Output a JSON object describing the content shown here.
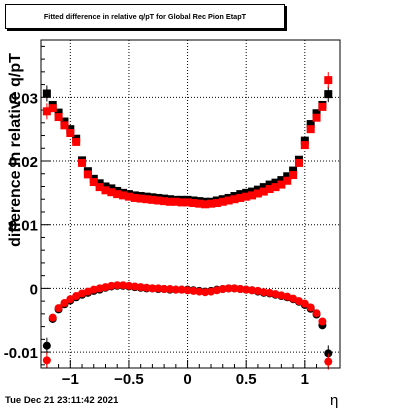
{
  "title": "Fitted difference in relative q/pT for Global Rec Pion EtapT",
  "ylabel": "difference in relative q/pT",
  "xlabel": "η",
  "timestamp": "Tue Dec 21 23:11:42 2021",
  "chart_data": {
    "type": "scatter",
    "xlim": [
      -1.25,
      1.3
    ],
    "ylim": [
      -0.0125,
      0.039
    ],
    "grid": true,
    "x_ticks": [
      -1,
      -0.5,
      0,
      0.5,
      1
    ],
    "x_tick_labels": [
      "−1",
      "−0.5",
      "0",
      "0.5",
      "1"
    ],
    "y_ticks": [
      -0.01,
      0,
      0.01,
      0.02,
      0.03
    ],
    "y_tick_labels": [
      "-0.01",
      "0",
      "0.01",
      "0.02",
      "0.03"
    ],
    "series": [
      {
        "color": "#000000",
        "marker": "square",
        "points": [
          [
            -1.2,
            0.0306
          ],
          [
            -1.15,
            0.0288
          ],
          [
            -1.1,
            0.0276
          ],
          [
            -1.05,
            0.0262
          ],
          [
            -1.0,
            0.025
          ],
          [
            -0.95,
            0.0235
          ],
          [
            -0.9,
            0.0201
          ],
          [
            -0.85,
            0.0184
          ],
          [
            -0.8,
            0.0172
          ],
          [
            -0.75,
            0.0165
          ],
          [
            -0.7,
            0.016
          ],
          [
            -0.65,
            0.0157
          ],
          [
            -0.6,
            0.0153
          ],
          [
            -0.55,
            0.015
          ],
          [
            -0.5,
            0.0148
          ],
          [
            -0.45,
            0.0146
          ],
          [
            -0.4,
            0.0145
          ],
          [
            -0.35,
            0.0144
          ],
          [
            -0.3,
            0.0143
          ],
          [
            -0.25,
            0.0142
          ],
          [
            -0.2,
            0.0141
          ],
          [
            -0.15,
            0.014
          ],
          [
            -0.1,
            0.0139
          ],
          [
            -0.05,
            0.0139
          ],
          [
            0.0,
            0.0139
          ],
          [
            0.05,
            0.0138
          ],
          [
            0.1,
            0.0137
          ],
          [
            0.15,
            0.0136
          ],
          [
            0.2,
            0.0136
          ],
          [
            0.25,
            0.0138
          ],
          [
            0.3,
            0.014
          ],
          [
            0.35,
            0.0142
          ],
          [
            0.4,
            0.0145
          ],
          [
            0.45,
            0.0148
          ],
          [
            0.5,
            0.015
          ],
          [
            0.55,
            0.0152
          ],
          [
            0.6,
            0.0155
          ],
          [
            0.65,
            0.0159
          ],
          [
            0.7,
            0.0163
          ],
          [
            0.75,
            0.0166
          ],
          [
            0.8,
            0.017
          ],
          [
            0.85,
            0.0176
          ],
          [
            0.9,
            0.0185
          ],
          [
            0.95,
            0.0202
          ],
          [
            1.0,
            0.0232
          ],
          [
            1.05,
            0.0258
          ],
          [
            1.1,
            0.0275
          ],
          [
            1.15,
            0.0288
          ],
          [
            1.2,
            0.0305
          ]
        ]
      },
      {
        "color": "#ff0000",
        "marker": "square",
        "points": [
          [
            -1.2,
            0.0278
          ],
          [
            -1.15,
            0.0283
          ],
          [
            -1.1,
            0.0269
          ],
          [
            -1.05,
            0.0256
          ],
          [
            -1.0,
            0.0244
          ],
          [
            -0.95,
            0.023
          ],
          [
            -0.9,
            0.0197
          ],
          [
            -0.85,
            0.0179
          ],
          [
            -0.8,
            0.0167
          ],
          [
            -0.75,
            0.0159
          ],
          [
            -0.7,
            0.0154
          ],
          [
            -0.65,
            0.0151
          ],
          [
            -0.6,
            0.0148
          ],
          [
            -0.55,
            0.0146
          ],
          [
            -0.5,
            0.0144
          ],
          [
            -0.45,
            0.0142
          ],
          [
            -0.4,
            0.0141
          ],
          [
            -0.35,
            0.014
          ],
          [
            -0.3,
            0.0139
          ],
          [
            -0.25,
            0.0138
          ],
          [
            -0.2,
            0.0137
          ],
          [
            -0.15,
            0.0136
          ],
          [
            -0.1,
            0.0136
          ],
          [
            -0.05,
            0.0135
          ],
          [
            0.0,
            0.0135
          ],
          [
            0.05,
            0.0134
          ],
          [
            0.1,
            0.0133
          ],
          [
            0.15,
            0.0132
          ],
          [
            0.2,
            0.0133
          ],
          [
            0.25,
            0.0134
          ],
          [
            0.3,
            0.0136
          ],
          [
            0.35,
            0.0138
          ],
          [
            0.4,
            0.014
          ],
          [
            0.45,
            0.0142
          ],
          [
            0.5,
            0.0144
          ],
          [
            0.55,
            0.0146
          ],
          [
            0.6,
            0.0149
          ],
          [
            0.65,
            0.0152
          ],
          [
            0.7,
            0.0156
          ],
          [
            0.75,
            0.0159
          ],
          [
            0.8,
            0.0163
          ],
          [
            0.85,
            0.0169
          ],
          [
            0.9,
            0.0178
          ],
          [
            0.95,
            0.0197
          ],
          [
            1.0,
            0.0225
          ],
          [
            1.05,
            0.025
          ],
          [
            1.1,
            0.0268
          ],
          [
            1.15,
            0.0285
          ],
          [
            1.2,
            0.0327
          ]
        ]
      },
      {
        "color": "#000000",
        "marker": "circle",
        "points": [
          [
            -1.2,
            -0.009
          ],
          [
            -1.15,
            -0.0048
          ],
          [
            -1.1,
            -0.0033
          ],
          [
            -1.05,
            -0.0025
          ],
          [
            -1.0,
            -0.0019
          ],
          [
            -0.95,
            -0.0014
          ],
          [
            -0.9,
            -0.001
          ],
          [
            -0.85,
            -0.0007
          ],
          [
            -0.8,
            -0.0004
          ],
          [
            -0.75,
            -0.0002
          ],
          [
            -0.7,
            0.0001
          ],
          [
            -0.65,
            0.0003
          ],
          [
            -0.6,
            0.0004
          ],
          [
            -0.55,
            0.0004
          ],
          [
            -0.5,
            0.0003
          ],
          [
            -0.45,
            0.0002
          ],
          [
            -0.4,
            0.0001
          ],
          [
            -0.35,
            0.0
          ],
          [
            -0.3,
            0.0
          ],
          [
            -0.25,
            -0.0001
          ],
          [
            -0.2,
            -0.0001
          ],
          [
            -0.15,
            -0.0002
          ],
          [
            -0.1,
            -0.0002
          ],
          [
            -0.05,
            -0.0002
          ],
          [
            0.0,
            -0.0002
          ],
          [
            0.05,
            -0.0003
          ],
          [
            0.1,
            -0.0004
          ],
          [
            0.15,
            -0.0005
          ],
          [
            0.2,
            -0.0004
          ],
          [
            0.25,
            -0.0002
          ],
          [
            0.3,
            -0.0001
          ],
          [
            0.35,
            0.0
          ],
          [
            0.4,
            0.0
          ],
          [
            0.45,
            -0.0001
          ],
          [
            0.5,
            -0.0002
          ],
          [
            0.55,
            -0.0003
          ],
          [
            0.6,
            -0.0005
          ],
          [
            0.65,
            -0.0007
          ],
          [
            0.7,
            -0.0008
          ],
          [
            0.75,
            -0.001
          ],
          [
            0.8,
            -0.0012
          ],
          [
            0.85,
            -0.0014
          ],
          [
            0.9,
            -0.0017
          ],
          [
            0.95,
            -0.0021
          ],
          [
            1.0,
            -0.0026
          ],
          [
            1.05,
            -0.0032
          ],
          [
            1.1,
            -0.0041
          ],
          [
            1.15,
            -0.0058
          ],
          [
            1.2,
            -0.0102
          ]
        ]
      },
      {
        "color": "#ff0000",
        "marker": "circle",
        "points": [
          [
            -1.2,
            -0.0113
          ],
          [
            -1.15,
            -0.0046
          ],
          [
            -1.1,
            -0.0031
          ],
          [
            -1.05,
            -0.0023
          ],
          [
            -1.0,
            -0.0017
          ],
          [
            -0.95,
            -0.0012
          ],
          [
            -0.9,
            -0.0008
          ],
          [
            -0.85,
            -0.0005
          ],
          [
            -0.8,
            -0.0002
          ],
          [
            -0.75,
            0.0
          ],
          [
            -0.7,
            0.0002
          ],
          [
            -0.65,
            0.0004
          ],
          [
            -0.6,
            0.0005
          ],
          [
            -0.55,
            0.0005
          ],
          [
            -0.5,
            0.0004
          ],
          [
            -0.45,
            0.0003
          ],
          [
            -0.4,
            0.0002
          ],
          [
            -0.35,
            0.0001
          ],
          [
            -0.3,
            0.0
          ],
          [
            -0.25,
            0.0
          ],
          [
            -0.2,
            -0.0001
          ],
          [
            -0.15,
            -0.0001
          ],
          [
            -0.1,
            -0.0002
          ],
          [
            -0.05,
            -0.0002
          ],
          [
            0.0,
            -0.0003
          ],
          [
            0.05,
            -0.0004
          ],
          [
            0.1,
            -0.0005
          ],
          [
            0.15,
            -0.0006
          ],
          [
            0.2,
            -0.0005
          ],
          [
            0.25,
            -0.0003
          ],
          [
            0.3,
            -0.0001
          ],
          [
            0.35,
            0.0
          ],
          [
            0.4,
            0.0
          ],
          [
            0.45,
            -0.0001
          ],
          [
            0.5,
            -0.0002
          ],
          [
            0.55,
            -0.0003
          ],
          [
            0.6,
            -0.0004
          ],
          [
            0.65,
            -0.0006
          ],
          [
            0.7,
            -0.0007
          ],
          [
            0.75,
            -0.0009
          ],
          [
            0.8,
            -0.0011
          ],
          [
            0.85,
            -0.0013
          ],
          [
            0.9,
            -0.0016
          ],
          [
            0.95,
            -0.002
          ],
          [
            1.0,
            -0.0024
          ],
          [
            1.05,
            -0.003
          ],
          [
            1.1,
            -0.0039
          ],
          [
            1.15,
            -0.0052
          ],
          [
            1.2,
            -0.0115
          ]
        ]
      }
    ]
  }
}
